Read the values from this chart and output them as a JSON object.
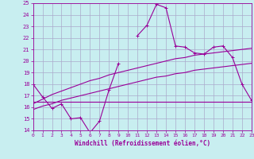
{
  "xlabel": "Windchill (Refroidissement éolien,°C)",
  "background_color": "#c8eef0",
  "grid_color": "#aaaacc",
  "line_color": "#990099",
  "x_values": [
    0,
    1,
    2,
    3,
    4,
    5,
    6,
    7,
    8,
    9,
    10,
    11,
    12,
    13,
    14,
    15,
    16,
    17,
    18,
    19,
    20,
    21,
    22,
    23
  ],
  "line1_y": [
    18.0,
    16.9,
    15.9,
    16.3,
    15.0,
    15.1,
    13.8,
    14.8,
    17.5,
    19.8,
    null,
    22.2,
    23.1,
    24.9,
    24.6,
    21.3,
    21.2,
    20.7,
    20.6,
    21.2,
    21.3,
    20.3,
    18.0,
    16.6
  ],
  "line3_y": [
    16.5,
    16.5,
    16.5,
    16.5,
    16.5,
    16.5,
    16.5,
    16.5,
    16.5,
    16.5,
    16.5,
    16.5,
    16.5,
    16.5,
    16.5,
    16.5,
    16.5,
    16.5,
    16.5,
    16.5,
    16.5,
    16.5,
    16.5,
    16.5
  ],
  "line4_y": [
    16.3,
    16.7,
    17.1,
    17.4,
    17.7,
    18.0,
    18.3,
    18.5,
    18.8,
    19.0,
    19.2,
    19.4,
    19.6,
    19.8,
    20.0,
    20.2,
    20.3,
    20.5,
    20.6,
    20.7,
    20.8,
    20.9,
    21.0,
    21.1
  ],
  "line5_y": [
    15.8,
    16.1,
    16.3,
    16.6,
    16.8,
    17.0,
    17.2,
    17.4,
    17.6,
    17.8,
    18.0,
    18.2,
    18.4,
    18.6,
    18.7,
    18.9,
    19.0,
    19.2,
    19.3,
    19.4,
    19.5,
    19.6,
    19.7,
    19.8
  ],
  "ylim": [
    14,
    25
  ],
  "xlim": [
    0,
    23
  ],
  "yticks": [
    14,
    15,
    16,
    17,
    18,
    19,
    20,
    21,
    22,
    23,
    24,
    25
  ],
  "xticks": [
    0,
    1,
    2,
    3,
    4,
    5,
    6,
    7,
    8,
    9,
    10,
    11,
    12,
    13,
    14,
    15,
    16,
    17,
    18,
    19,
    20,
    21,
    22,
    23
  ]
}
